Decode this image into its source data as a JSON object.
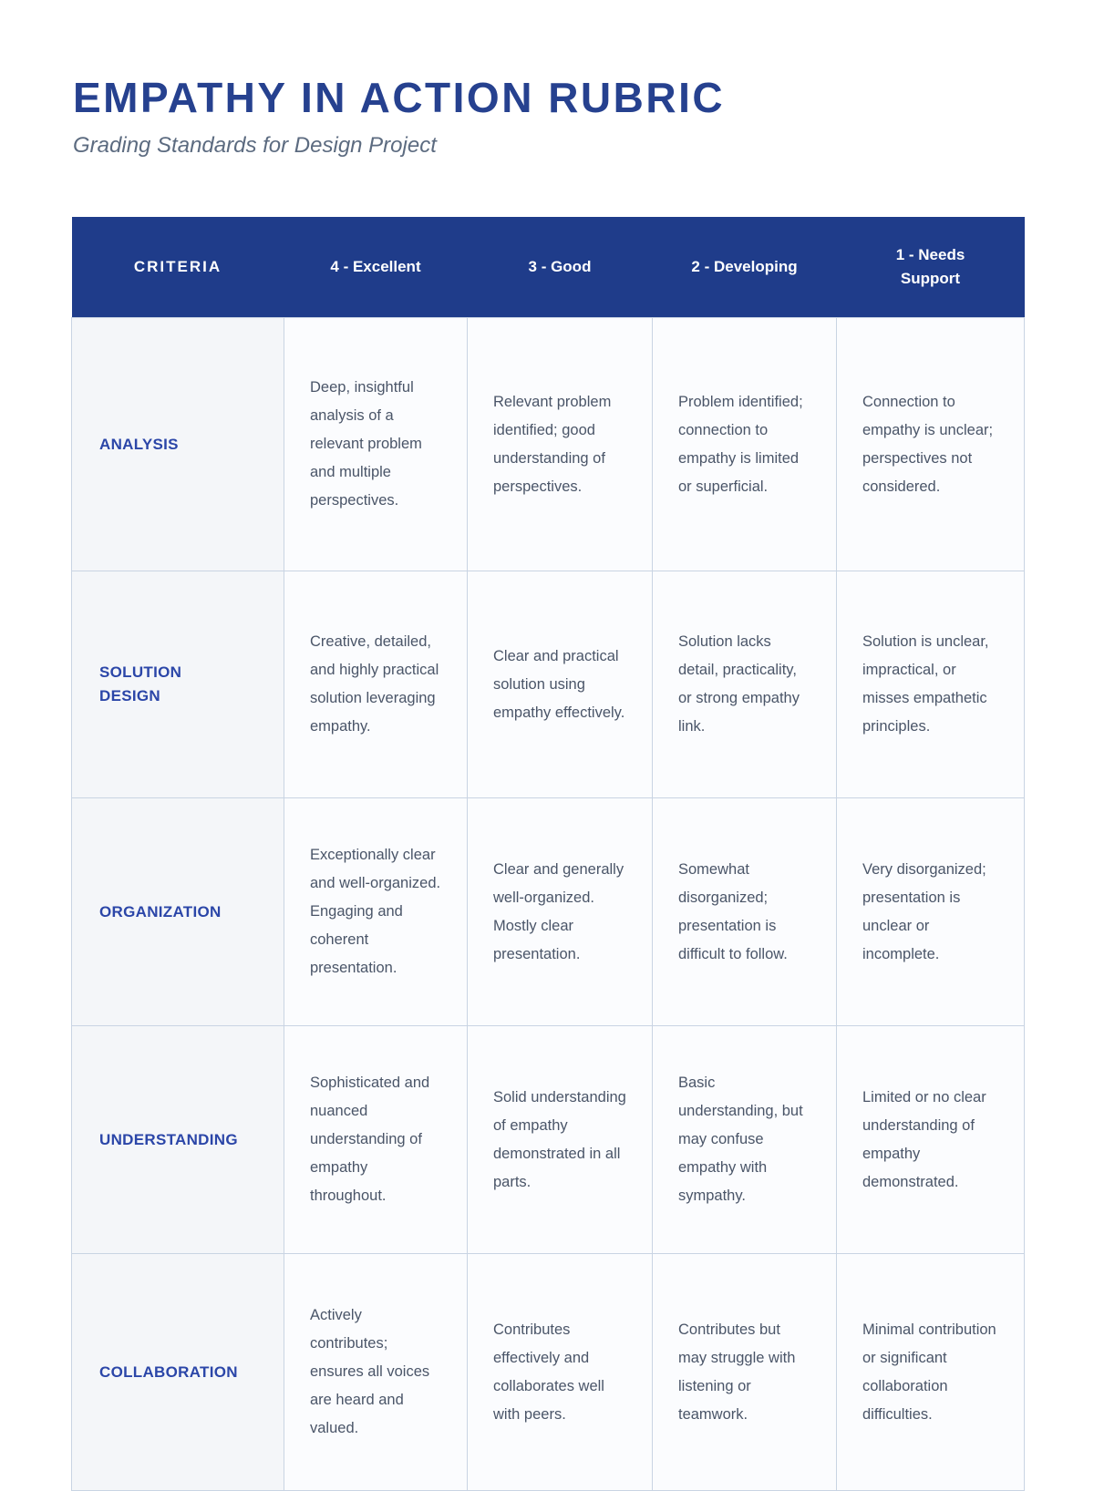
{
  "page": {
    "title": "EMPATHY IN ACTION RUBRIC",
    "subtitle": "Grading Standards for Design Project"
  },
  "colors": {
    "header_background": "#1F3C8A",
    "title_text": "#26418F",
    "criterion_text": "#2B46A8",
    "body_text": "#4A5568",
    "criteria_column_background": "#F4F6F9",
    "cell_background": "#FBFCFE",
    "cell_border": "#C9D4E3",
    "subtitle_text": "#5C6B80"
  },
  "table": {
    "headers": [
      "CRITERIA",
      "4 - Excellent",
      "3 - Good",
      "2 - Developing",
      "1 - Needs Support"
    ],
    "rows": [
      {
        "criterion": "ANALYSIS",
        "cells": [
          "Deep, insightful analysis of a relevant problem and multiple perspectives.",
          "Relevant problem identified; good understanding of perspectives.",
          "Problem identified; connection to empathy is limited or superficial.",
          "Connection to empathy is unclear; perspectives not considered."
        ]
      },
      {
        "criterion": "SOLUTION DESIGN",
        "cells": [
          "Creative, detailed, and highly practical solution leveraging empathy.",
          "Clear and practical solution using empathy effectively.",
          "Solution lacks detail, practicality, or strong empathy link.",
          "Solution is unclear, impractical, or misses empathetic principles."
        ]
      },
      {
        "criterion": "ORGANIZATION",
        "cells": [
          "Exceptionally clear and well-organized. Engaging and coherent presentation.",
          "Clear and generally well-organized. Mostly clear presentation.",
          "Somewhat disorganized; presentation is difficult to follow.",
          "Very disorganized; presentation is unclear or incomplete."
        ]
      },
      {
        "criterion": "UNDERSTANDING",
        "cells": [
          "Sophisticated and nuanced understanding of empathy throughout.",
          "Solid understanding of empathy demonstrated in all parts.",
          "Basic understanding, but may confuse empathy with sympathy.",
          "Limited or no clear understanding of empathy demonstrated."
        ]
      },
      {
        "criterion": "COLLABORATION",
        "cells": [
          "Actively contributes; ensures all voices are heard and valued.",
          "Contributes effectively and collaborates well with peers.",
          "Contributes but may struggle with listening or teamwork.",
          "Minimal contribution or significant collaboration difficulties."
        ]
      }
    ]
  }
}
